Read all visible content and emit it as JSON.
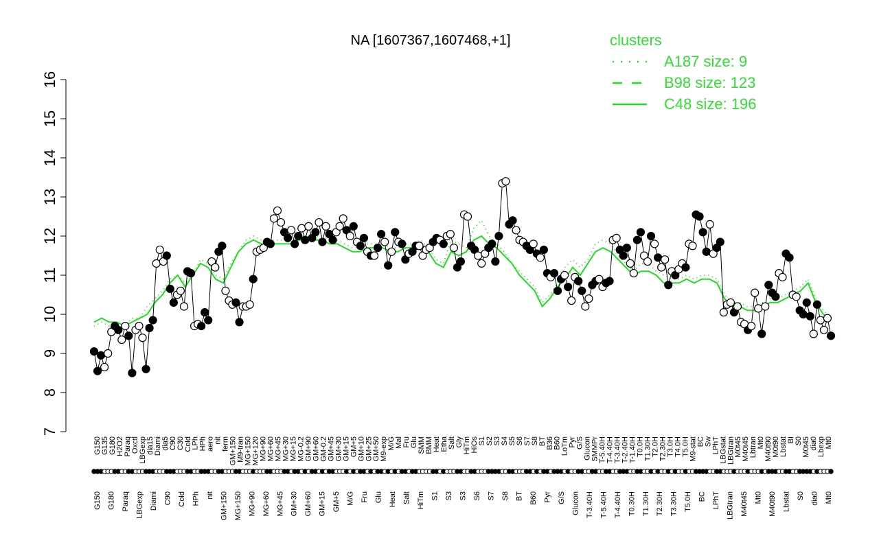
{
  "chart_data": {
    "type": "scatter",
    "title": "NA [1607367,1607468,+1]",
    "xlabel": "",
    "ylabel": "",
    "ylim": [
      7,
      16
    ],
    "yticks": [
      7,
      8,
      9,
      10,
      11,
      12,
      13,
      14,
      15,
      16
    ],
    "grid": false,
    "legend_placement": "top-right",
    "legend": {
      "title": "clusters",
      "items": [
        {
          "label": "A187 size: 9",
          "style": "dotted"
        },
        {
          "label": "B98 size: 123",
          "style": "dashed"
        },
        {
          "label": "C48 size: 196",
          "style": "solid"
        }
      ]
    },
    "x_labels_top": [
      "G150",
      "G135",
      "G180",
      "H2O2",
      "Paraq",
      "Oxctl",
      "LBGexp",
      "dia15",
      "Diami",
      "dia5",
      "C90",
      "C30",
      "Cold",
      "LPh",
      "HPh",
      "aero",
      "nit",
      "ferm",
      "GM+150",
      "M9-tran",
      "MG+150",
      "MG+120",
      "MG+90",
      "MG+60",
      "MG+45",
      "MG+30",
      "MG+15",
      "MG-0.2",
      "GM+90",
      "GM+60",
      "GM-0.2",
      "GM+45",
      "GM+30",
      "GM+15",
      "GM+5",
      "GM+10",
      "GM+25",
      "GM+50",
      "M9-exp",
      "M/G",
      "Mal",
      "Fru",
      "Glu",
      "SMM",
      "BMM",
      "Heat",
      "Etha",
      "Salt",
      "Gly",
      "HiTm",
      "HiOs",
      "S1",
      "S2",
      "S3",
      "S4",
      "S5",
      "S6",
      "S7",
      "S8",
      "BT",
      "B36",
      "B60",
      "LoTm",
      "Pyr",
      "G/S",
      "Glucon",
      "SMMPr",
      "T-5.40H",
      "T-4.40H",
      "T-3.40H",
      "T-2.40H",
      "T-1.40H",
      "T0.0H",
      "T1.30H",
      "T2.0H",
      "T2.30H",
      "T3.0H",
      "T4.0H",
      "T5.0H",
      "M9-stat",
      "BC",
      "Sw",
      "LPhT",
      "LBGstat",
      "LBGtran",
      "M0t45",
      "M40t45",
      "Lbtran",
      "Mt0",
      "M40t90",
      "M0t90",
      "Lbstat",
      "BI",
      "S0",
      "M0t45",
      "dia0",
      "Lbexp",
      "Mt0"
    ],
    "x_labels_bottom": [
      "G150",
      "G180",
      "Paraq",
      "LBGexp",
      "Diami",
      "C90",
      "Cold",
      "HPh",
      "nit",
      "GM+150",
      "MG+150",
      "MG+90",
      "MG+60",
      "MG+45",
      "GM+30",
      "GM+60",
      "GM+15",
      "GM+5",
      "M/G",
      "Fru",
      "Glu",
      "Heat",
      "Salt",
      "HiTm",
      "S1",
      "S3",
      "S3",
      "S6",
      "S7",
      "S8",
      "BT",
      "B60",
      "Pyr",
      "G/S",
      "Glucon",
      "T-3.40H",
      "T-5.40H",
      "T-4.40H",
      "T0.30H",
      "T1.30H",
      "T2.30H",
      "T3.30H",
      "T5.0H",
      "BC",
      "LPhT",
      "LBGtran",
      "M40t45",
      "Mt0",
      "M40t90",
      "Lbstat",
      "S0",
      "dia0",
      "Mt0"
    ],
    "series": [
      {
        "style": "solid",
        "values": [
          9.8,
          9.9,
          9.8,
          9.8,
          9.7,
          9.8,
          9.9,
          10.0,
          10.3,
          10.5,
          10.8,
          11.0,
          10.7,
          11.0,
          11.3,
          11.2,
          10.9,
          10.8,
          11.2,
          11.6,
          11.8,
          11.9,
          11.8,
          11.8,
          11.8,
          11.8,
          11.8,
          11.9,
          11.9,
          11.9,
          11.9,
          11.8,
          11.8,
          11.7,
          11.6,
          11.6,
          11.7,
          11.7,
          11.7,
          11.6,
          11.6,
          11.7,
          11.7,
          11.8,
          11.6,
          11.3,
          11.2,
          11.6,
          11.5,
          11.6,
          11.9,
          12.0,
          11.8,
          11.7,
          11.5,
          11.3,
          11.0,
          10.8,
          10.6,
          10.2,
          10.4,
          10.7,
          10.9,
          11.2,
          11.0,
          11.3,
          11.6,
          11.7,
          11.6,
          11.4,
          11.2,
          11.0,
          11.1,
          11.1,
          11.0,
          10.8,
          10.8,
          10.8,
          10.9,
          10.8,
          10.9,
          10.9,
          10.8,
          10.4,
          10.2,
          10.2,
          10.1,
          10.1,
          10.2,
          10.3,
          10.3,
          10.4,
          10.5,
          10.6,
          10.8,
          10.3,
          10.0,
          9.9
        ]
      },
      {
        "style": "dotted",
        "values": [
          9.7,
          9.8,
          9.7,
          9.6,
          9.7,
          9.9,
          9.9,
          10.2,
          10.4,
          10.6,
          10.9,
          11.0,
          10.8,
          11.0,
          11.4,
          11.3,
          11.0,
          10.9,
          11.3,
          11.6,
          11.9,
          12.0,
          11.9,
          11.9,
          11.9,
          11.9,
          11.9,
          12.0,
          12.0,
          12.0,
          12.0,
          11.9,
          11.9,
          11.8,
          11.7,
          11.7,
          11.8,
          11.8,
          11.8,
          11.7,
          11.7,
          11.8,
          11.8,
          11.9,
          11.7,
          11.4,
          11.3,
          11.9,
          11.8,
          11.7,
          12.2,
          12.4,
          12.0,
          11.8,
          11.6,
          11.3,
          11.1,
          10.9,
          10.7,
          10.3,
          10.5,
          10.8,
          11.2,
          11.4,
          11.2,
          11.4,
          11.8,
          11.9,
          11.8,
          11.5,
          11.3,
          11.1,
          11.3,
          11.3,
          11.1,
          11.0,
          10.9,
          10.9,
          11.0,
          10.9,
          11.0,
          11.0,
          10.9,
          10.5,
          10.3,
          10.3,
          10.2,
          10.2,
          10.3,
          10.4,
          10.4,
          10.5,
          10.6,
          10.7,
          10.9,
          10.4,
          10.1,
          9.9
        ]
      }
    ],
    "points": [
      [
        0,
        9.05,
        "f"
      ],
      [
        1,
        8.55,
        "f"
      ],
      [
        2,
        8.95,
        "f"
      ],
      [
        3,
        8.65,
        "o"
      ],
      [
        4,
        9.0,
        "o"
      ],
      [
        5,
        9.55,
        "o"
      ],
      [
        6,
        9.7,
        "f"
      ],
      [
        7,
        9.6,
        "f"
      ],
      [
        8,
        9.35,
        "o"
      ],
      [
        9,
        9.7,
        "o"
      ],
      [
        10,
        9.45,
        "f"
      ],
      [
        11,
        8.5,
        "f"
      ],
      [
        12,
        9.6,
        "o"
      ],
      [
        13,
        9.7,
        "o"
      ],
      [
        14,
        9.4,
        "o"
      ],
      [
        15,
        8.6,
        "f"
      ],
      [
        16,
        9.65,
        "f"
      ],
      [
        17,
        9.85,
        "f"
      ],
      [
        18,
        11.3,
        "o"
      ],
      [
        19,
        11.65,
        "o"
      ],
      [
        20,
        11.35,
        "o"
      ],
      [
        21,
        11.5,
        "f"
      ],
      [
        22,
        10.65,
        "f"
      ],
      [
        23,
        10.3,
        "f"
      ],
      [
        24,
        10.5,
        "o"
      ],
      [
        25,
        10.6,
        "o"
      ],
      [
        26,
        10.2,
        "o"
      ],
      [
        27,
        11.1,
        "f"
      ],
      [
        28,
        11.05,
        "f"
      ],
      [
        29,
        9.7,
        "o"
      ],
      [
        30,
        9.75,
        "o"
      ],
      [
        31,
        9.7,
        "f"
      ],
      [
        32,
        10.05,
        "f"
      ],
      [
        33,
        9.85,
        "f"
      ],
      [
        34,
        11.35,
        "o"
      ],
      [
        35,
        11.2,
        "o"
      ],
      [
        36,
        11.6,
        "f"
      ],
      [
        37,
        11.75,
        "f"
      ],
      [
        38,
        10.6,
        "o"
      ],
      [
        39,
        10.35,
        "o"
      ],
      [
        40,
        10.25,
        "o"
      ],
      [
        41,
        10.3,
        "f"
      ],
      [
        42,
        9.8,
        "f"
      ],
      [
        43,
        10.2,
        "o"
      ],
      [
        44,
        10.2,
        "o"
      ],
      [
        45,
        10.25,
        "o"
      ],
      [
        46,
        10.9,
        "f"
      ],
      [
        47,
        11.6,
        "o"
      ],
      [
        48,
        11.65,
        "o"
      ],
      [
        49,
        11.7,
        "o"
      ],
      [
        50,
        11.85,
        "f"
      ],
      [
        51,
        11.8,
        "f"
      ],
      [
        52,
        12.45,
        "o"
      ],
      [
        53,
        12.65,
        "o"
      ],
      [
        54,
        12.35,
        "o"
      ],
      [
        55,
        12.1,
        "f"
      ],
      [
        56,
        11.95,
        "f"
      ],
      [
        57,
        12.15,
        "o"
      ],
      [
        58,
        11.8,
        "f"
      ],
      [
        59,
        12.0,
        "f"
      ],
      [
        60,
        12.2,
        "o"
      ],
      [
        61,
        11.9,
        "f"
      ],
      [
        62,
        12.25,
        "o"
      ],
      [
        63,
        11.95,
        "f"
      ],
      [
        64,
        12.1,
        "f"
      ],
      [
        65,
        12.35,
        "o"
      ],
      [
        66,
        11.85,
        "f"
      ],
      [
        67,
        12.25,
        "o"
      ],
      [
        68,
        12.05,
        "f"
      ],
      [
        69,
        11.9,
        "f"
      ],
      [
        70,
        12.1,
        "o"
      ],
      [
        71,
        12.25,
        "o"
      ],
      [
        72,
        12.45,
        "o"
      ],
      [
        73,
        12.15,
        "f"
      ],
      [
        74,
        12.0,
        "o"
      ],
      [
        75,
        12.25,
        "f"
      ],
      [
        76,
        11.85,
        "o"
      ],
      [
        77,
        11.75,
        "f"
      ],
      [
        78,
        11.95,
        "f"
      ],
      [
        79,
        11.6,
        "o"
      ],
      [
        80,
        11.5,
        "f"
      ],
      [
        81,
        11.5,
        "o"
      ],
      [
        82,
        11.7,
        "f"
      ],
      [
        83,
        12.05,
        "f"
      ],
      [
        84,
        11.85,
        "o"
      ],
      [
        85,
        11.25,
        "f"
      ],
      [
        86,
        11.6,
        "o"
      ],
      [
        87,
        12.1,
        "f"
      ],
      [
        88,
        11.85,
        "o"
      ],
      [
        89,
        11.8,
        "f"
      ],
      [
        90,
        11.4,
        "f"
      ],
      [
        91,
        11.55,
        "o"
      ],
      [
        92,
        11.6,
        "f"
      ],
      [
        93,
        11.75,
        "f"
      ],
      [
        94,
        11.75,
        "o"
      ],
      [
        95,
        11.5,
        "o"
      ],
      [
        96,
        11.65,
        "o"
      ],
      [
        97,
        11.7,
        "o"
      ],
      [
        98,
        11.85,
        "f"
      ],
      [
        99,
        11.95,
        "f"
      ],
      [
        100,
        11.9,
        "o"
      ],
      [
        101,
        11.8,
        "f"
      ],
      [
        102,
        12.0,
        "o"
      ],
      [
        103,
        12.05,
        "o"
      ],
      [
        104,
        11.7,
        "o"
      ],
      [
        105,
        11.2,
        "f"
      ],
      [
        106,
        11.35,
        "f"
      ],
      [
        107,
        12.55,
        "o"
      ],
      [
        108,
        12.5,
        "o"
      ],
      [
        109,
        11.75,
        "f"
      ],
      [
        110,
        11.65,
        "f"
      ],
      [
        111,
        11.5,
        "o"
      ],
      [
        112,
        11.3,
        "o"
      ],
      [
        113,
        11.55,
        "o"
      ],
      [
        114,
        11.7,
        "f"
      ],
      [
        115,
        11.8,
        "f"
      ],
      [
        116,
        11.35,
        "f"
      ],
      [
        117,
        12.0,
        "f"
      ],
      [
        118,
        13.35,
        "o"
      ],
      [
        119,
        13.4,
        "o"
      ],
      [
        120,
        12.3,
        "f"
      ],
      [
        121,
        12.4,
        "f"
      ],
      [
        122,
        12.15,
        "o"
      ],
      [
        123,
        11.9,
        "o"
      ],
      [
        124,
        11.85,
        "o"
      ],
      [
        125,
        11.75,
        "f"
      ],
      [
        126,
        11.65,
        "f"
      ],
      [
        127,
        11.8,
        "o"
      ],
      [
        128,
        11.55,
        "f"
      ],
      [
        129,
        11.45,
        "o"
      ],
      [
        130,
        11.65,
        "f"
      ],
      [
        131,
        11.05,
        "f"
      ],
      [
        132,
        10.95,
        "o"
      ],
      [
        133,
        11.05,
        "f"
      ],
      [
        134,
        10.6,
        "f"
      ],
      [
        135,
        10.9,
        "f"
      ],
      [
        136,
        11.0,
        "o"
      ],
      [
        137,
        10.7,
        "f"
      ],
      [
        138,
        10.35,
        "o"
      ],
      [
        139,
        10.95,
        "o"
      ],
      [
        140,
        10.85,
        "f"
      ],
      [
        141,
        10.6,
        "f"
      ],
      [
        142,
        10.2,
        "o"
      ],
      [
        143,
        10.4,
        "o"
      ],
      [
        144,
        10.75,
        "f"
      ],
      [
        145,
        10.85,
        "f"
      ],
      [
        146,
        10.9,
        "o"
      ],
      [
        147,
        10.7,
        "o"
      ],
      [
        148,
        10.8,
        "f"
      ],
      [
        149,
        10.85,
        "f"
      ],
      [
        150,
        11.9,
        "o"
      ],
      [
        151,
        11.95,
        "o"
      ],
      [
        152,
        11.65,
        "f"
      ],
      [
        153,
        11.5,
        "f"
      ],
      [
        154,
        11.7,
        "f"
      ],
      [
        155,
        11.3,
        "o"
      ],
      [
        156,
        11.05,
        "o"
      ],
      [
        157,
        11.9,
        "f"
      ],
      [
        158,
        12.1,
        "f"
      ],
      [
        159,
        11.5,
        "o"
      ],
      [
        160,
        11.35,
        "o"
      ],
      [
        161,
        12.0,
        "f"
      ],
      [
        162,
        11.8,
        "o"
      ],
      [
        163,
        11.45,
        "f"
      ],
      [
        164,
        11.2,
        "o"
      ],
      [
        165,
        11.4,
        "o"
      ],
      [
        166,
        10.75,
        "f"
      ],
      [
        167,
        11.1,
        "o"
      ],
      [
        168,
        11.0,
        "f"
      ],
      [
        169,
        11.15,
        "o"
      ],
      [
        170,
        11.3,
        "o"
      ],
      [
        171,
        11.2,
        "f"
      ],
      [
        172,
        11.8,
        "o"
      ],
      [
        173,
        11.75,
        "o"
      ],
      [
        174,
        12.55,
        "f"
      ],
      [
        175,
        12.5,
        "f"
      ],
      [
        176,
        12.1,
        "f"
      ],
      [
        177,
        11.6,
        "f"
      ],
      [
        178,
        12.3,
        "o"
      ],
      [
        179,
        11.55,
        "o"
      ],
      [
        180,
        11.7,
        "f"
      ],
      [
        181,
        11.85,
        "f"
      ],
      [
        182,
        10.05,
        "o"
      ],
      [
        183,
        10.25,
        "o"
      ],
      [
        184,
        10.3,
        "o"
      ],
      [
        185,
        10.05,
        "f"
      ],
      [
        186,
        10.2,
        "o"
      ],
      [
        187,
        9.8,
        "o"
      ],
      [
        188,
        9.75,
        "o"
      ],
      [
        189,
        9.6,
        "f"
      ],
      [
        190,
        9.7,
        "o"
      ],
      [
        191,
        10.55,
        "o"
      ],
      [
        192,
        10.15,
        "o"
      ],
      [
        193,
        9.5,
        "f"
      ],
      [
        194,
        10.2,
        "o"
      ],
      [
        195,
        10.75,
        "f"
      ],
      [
        196,
        10.55,
        "f"
      ],
      [
        197,
        10.45,
        "f"
      ],
      [
        198,
        11.05,
        "o"
      ],
      [
        199,
        10.95,
        "o"
      ],
      [
        200,
        11.55,
        "f"
      ],
      [
        201,
        11.45,
        "f"
      ],
      [
        202,
        10.5,
        "o"
      ],
      [
        203,
        10.45,
        "o"
      ],
      [
        204,
        10.1,
        "f"
      ],
      [
        205,
        10.0,
        "f"
      ],
      [
        206,
        10.3,
        "f"
      ],
      [
        207,
        9.95,
        "f"
      ],
      [
        208,
        9.5,
        "o"
      ],
      [
        209,
        10.25,
        "f"
      ],
      [
        210,
        9.85,
        "o"
      ],
      [
        211,
        9.6,
        "o"
      ],
      [
        212,
        9.9,
        "o"
      ],
      [
        213,
        9.45,
        "f"
      ]
    ]
  }
}
